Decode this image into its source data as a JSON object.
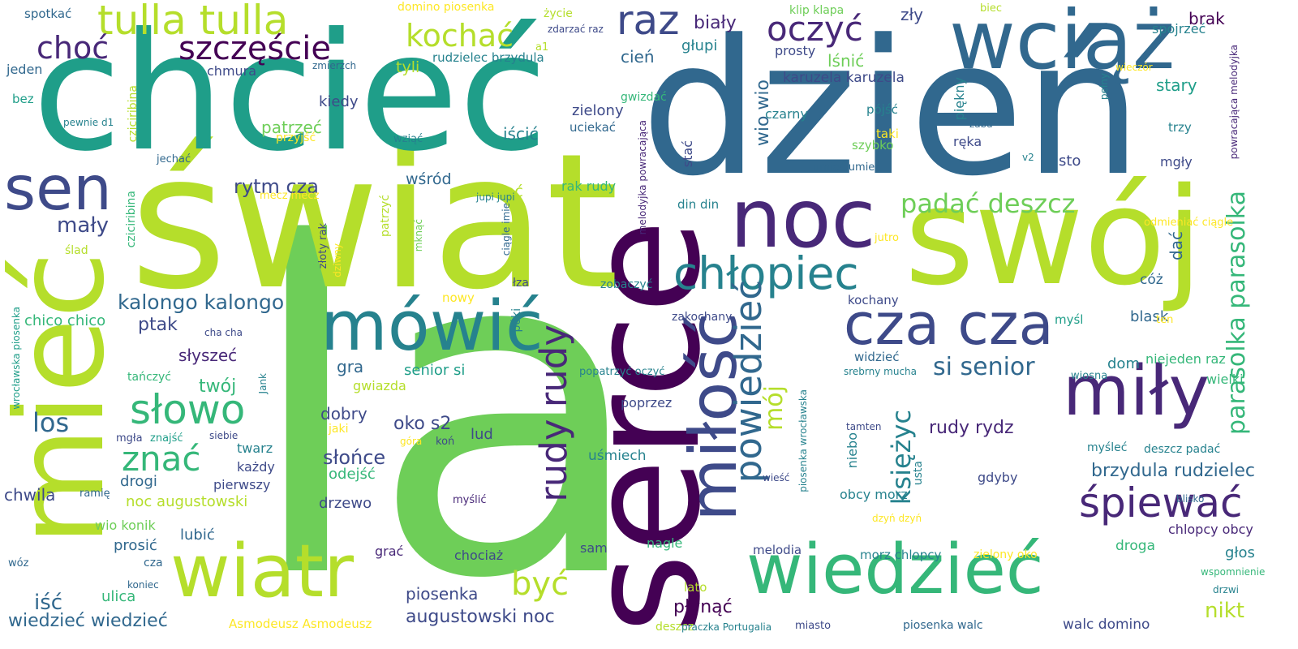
{
  "palette": {
    "dark_purple": "#440154",
    "purple": "#482878",
    "indigo": "#3e4a89",
    "blue": "#31688e",
    "teal": "#26828e",
    "green_teal": "#1f9e89",
    "green": "#35b779",
    "light_green": "#6ece58",
    "lime": "#b5de2b",
    "yellow": "#fde725"
  },
  "words": [
    {
      "text": "la",
      "color": "light_green"
    },
    {
      "text": "serce",
      "color": "dark_purple"
    },
    {
      "text": "dzień",
      "color": "blue"
    },
    {
      "text": "świat",
      "color": "lime"
    },
    {
      "text": "chcieć",
      "color": "green_teal"
    },
    {
      "text": "swój",
      "color": "lime"
    },
    {
      "text": "mieć",
      "color": "lime"
    },
    {
      "text": "noc",
      "color": "purple"
    },
    {
      "text": "wciąż",
      "color": "blue"
    },
    {
      "text": "mówić",
      "color": "teal"
    },
    {
      "text": "miły",
      "color": "purple"
    },
    {
      "text": "wiedzieć",
      "color": "green"
    },
    {
      "text": "wiatr",
      "color": "lime"
    },
    {
      "text": "miłość",
      "color": "indigo"
    },
    {
      "text": "tulla tulla",
      "color": "lime"
    },
    {
      "text": "sen",
      "color": "indigo"
    },
    {
      "text": "cza cza",
      "color": "indigo"
    },
    {
      "text": "chłopiec",
      "color": "teal"
    },
    {
      "text": "rudy rudy",
      "color": "purple"
    },
    {
      "text": "raz",
      "color": "indigo"
    },
    {
      "text": "oczyć",
      "color": "purple"
    },
    {
      "text": "powiedzieć",
      "color": "blue"
    },
    {
      "text": "słowo",
      "color": "green"
    },
    {
      "text": "śpiewać",
      "color": "purple"
    },
    {
      "text": "szczęście",
      "color": "dark_purple"
    },
    {
      "text": "kochać",
      "color": "lime"
    },
    {
      "text": "choć",
      "color": "purple"
    },
    {
      "text": "znać",
      "color": "green"
    },
    {
      "text": "parasolka parasolka",
      "color": "green"
    },
    {
      "text": "padać deszcz",
      "color": "light_green"
    },
    {
      "text": "być",
      "color": "lime"
    },
    {
      "text": "księżyc",
      "color": "teal"
    },
    {
      "text": "si senior",
      "color": "blue"
    },
    {
      "text": "mój",
      "color": "lime"
    },
    {
      "text": "los",
      "color": "blue"
    },
    {
      "text": "mały",
      "color": "indigo"
    },
    {
      "text": "kalongo kalongo",
      "color": "blue"
    },
    {
      "text": "rytm cza",
      "color": "indigo"
    },
    {
      "text": "brzydula rudzielec",
      "color": "blue"
    },
    {
      "text": "wiedzieć wiedzieć",
      "color": "blue"
    },
    {
      "text": "augustowski noc",
      "color": "indigo"
    },
    {
      "text": "iść",
      "color": "blue"
    },
    {
      "text": "piosenka",
      "color": "indigo"
    },
    {
      "text": "nikt",
      "color": "lime"
    },
    {
      "text": "walc domino",
      "color": "indigo"
    },
    {
      "text": "wio wio",
      "color": "blue"
    },
    {
      "text": "słońce",
      "color": "indigo"
    },
    {
      "text": "oko s2",
      "color": "indigo"
    },
    {
      "text": "rudy rydz",
      "color": "purple"
    },
    {
      "text": "twój",
      "color": "green"
    },
    {
      "text": "ptak",
      "color": "indigo"
    },
    {
      "text": "płynąć",
      "color": "dark_purple"
    },
    {
      "text": "biały",
      "color": "purple"
    },
    {
      "text": "zły",
      "color": "indigo"
    },
    {
      "text": "cień",
      "color": "blue"
    },
    {
      "text": "głupi",
      "color": "teal"
    },
    {
      "text": "lśnić",
      "color": "light_green"
    },
    {
      "text": "brak",
      "color": "dark_purple"
    },
    {
      "text": "stary",
      "color": "green_teal"
    },
    {
      "text": "spojrzeć",
      "color": "teal"
    },
    {
      "text": "karuzela karuzela",
      "color": "indigo"
    },
    {
      "text": "prosty",
      "color": "indigo"
    },
    {
      "text": "tyli",
      "color": "lime"
    },
    {
      "text": "chmura",
      "color": "indigo"
    },
    {
      "text": "kiedy",
      "color": "indigo"
    },
    {
      "text": "patrzeć",
      "color": "light_green"
    },
    {
      "text": "iścić",
      "color": "teal"
    },
    {
      "text": "zielony",
      "color": "indigo"
    },
    {
      "text": "uciekać",
      "color": "blue"
    },
    {
      "text": "czarny",
      "color": "teal"
    },
    {
      "text": "pójść",
      "color": "teal"
    },
    {
      "text": "taki",
      "color": "yellow"
    },
    {
      "text": "szybko",
      "color": "light_green"
    },
    {
      "text": "ręka",
      "color": "indigo"
    },
    {
      "text": "sto",
      "color": "indigo"
    },
    {
      "text": "mgły",
      "color": "indigo"
    },
    {
      "text": "trzy",
      "color": "teal"
    },
    {
      "text": "czekać",
      "color": "lime"
    },
    {
      "text": "wśród",
      "color": "blue"
    },
    {
      "text": "rak rudy",
      "color": "green"
    },
    {
      "text": "din din",
      "color": "teal"
    },
    {
      "text": "stać",
      "color": "indigo"
    },
    {
      "text": "dać",
      "color": "blue"
    },
    {
      "text": "cóż",
      "color": "blue"
    },
    {
      "text": "gra",
      "color": "blue"
    },
    {
      "text": "senior si",
      "color": "green_teal"
    },
    {
      "text": "gwiazda",
      "color": "lime"
    },
    {
      "text": "dobry",
      "color": "indigo"
    },
    {
      "text": "lud",
      "color": "indigo"
    },
    {
      "text": "słyszeć",
      "color": "purple"
    },
    {
      "text": "chico chico",
      "color": "green"
    },
    {
      "text": "drogi",
      "color": "blue"
    },
    {
      "text": "noc augustowski",
      "color": "lime"
    },
    {
      "text": "odejść",
      "color": "green"
    },
    {
      "text": "drzewo",
      "color": "indigo"
    },
    {
      "text": "chwila",
      "color": "indigo"
    },
    {
      "text": "lubić",
      "color": "blue"
    },
    {
      "text": "prosić",
      "color": "blue"
    },
    {
      "text": "ulica",
      "color": "green"
    },
    {
      "text": "wio konik",
      "color": "light_green"
    },
    {
      "text": "każdy",
      "color": "indigo"
    },
    {
      "text": "pierwszy",
      "color": "indigo"
    },
    {
      "text": "twarz",
      "color": "teal"
    },
    {
      "text": "uśmiech",
      "color": "teal"
    },
    {
      "text": "poprzez",
      "color": "indigo"
    },
    {
      "text": "kochany",
      "color": "indigo"
    },
    {
      "text": "zakochany",
      "color": "indigo"
    },
    {
      "text": "widzieć",
      "color": "blue"
    },
    {
      "text": "dom",
      "color": "teal"
    },
    {
      "text": "blask",
      "color": "blue"
    },
    {
      "text": "myśl",
      "color": "green_teal"
    },
    {
      "text": "niejeden raz",
      "color": "green"
    },
    {
      "text": "wielki",
      "color": "green"
    },
    {
      "text": "wiosna",
      "color": "teal"
    },
    {
      "text": "gdyby",
      "color": "indigo"
    },
    {
      "text": "niebo",
      "color": "teal"
    },
    {
      "text": "usta",
      "color": "teal"
    },
    {
      "text": "myśleć",
      "color": "teal"
    },
    {
      "text": "deszcz padać",
      "color": "teal"
    },
    {
      "text": "obcy morz",
      "color": "teal"
    },
    {
      "text": "chlopcy obcy",
      "color": "purple"
    },
    {
      "text": "głos",
      "color": "teal"
    },
    {
      "text": "droga",
      "color": "green"
    },
    {
      "text": "melodia",
      "color": "indigo"
    },
    {
      "text": "morz chlopcy",
      "color": "teal"
    },
    {
      "text": "nagle",
      "color": "green"
    },
    {
      "text": "sam",
      "color": "indigo"
    },
    {
      "text": "chociaż",
      "color": "indigo"
    },
    {
      "text": "grać",
      "color": "purple"
    },
    {
      "text": "lato",
      "color": "lime"
    },
    {
      "text": "zielony oko",
      "color": "yellow"
    },
    {
      "text": "wspomnienie",
      "color": "green"
    },
    {
      "text": "drzwi",
      "color": "teal"
    },
    {
      "text": "miasto",
      "color": "indigo"
    },
    {
      "text": "piosenka walc",
      "color": "blue"
    },
    {
      "text": "deszcz",
      "color": "lime"
    },
    {
      "text": "praczka Portugalia",
      "color": "teal"
    },
    {
      "text": "Asmodeusz Asmodeusz",
      "color": "yellow"
    },
    {
      "text": "spotkać",
      "color": "blue"
    },
    {
      "text": "jeden",
      "color": "blue"
    },
    {
      "text": "bez",
      "color": "green_teal"
    },
    {
      "text": "pewnie d1",
      "color": "teal"
    },
    {
      "text": "domino piosenka",
      "color": "yellow"
    },
    {
      "text": "życie",
      "color": "lime"
    },
    {
      "text": "zdarzać raz",
      "color": "indigo"
    },
    {
      "text": "a1",
      "color": "lime"
    },
    {
      "text": "rudzielec brzydula",
      "color": "teal"
    },
    {
      "text": "zmierzch",
      "color": "blue"
    },
    {
      "text": "klip klapa",
      "color": "light_green"
    },
    {
      "text": "biec",
      "color": "lime"
    },
    {
      "text": "wieczór",
      "color": "yellow"
    },
    {
      "text": "piękny",
      "color": "teal"
    },
    {
      "text": "pełny",
      "color": "teal"
    },
    {
      "text": "żaba",
      "color": "blue"
    },
    {
      "text": "gwizdać",
      "color": "green"
    },
    {
      "text": "wziąć",
      "color": "teal"
    },
    {
      "text": "przyjść",
      "color": "yellow"
    },
    {
      "text": "jechać",
      "color": "blue"
    },
    {
      "text": "cziciribina",
      "color": "lime"
    },
    {
      "text": "mecz mecz",
      "color": "yellow"
    },
    {
      "text": "jupi jupi",
      "color": "teal"
    },
    {
      "text": "umieć umieć",
      "color": "blue"
    },
    {
      "text": "v2",
      "color": "teal"
    },
    {
      "text": "jutro",
      "color": "yellow"
    },
    {
      "text": "odmieniać ciągle",
      "color": "yellow"
    },
    {
      "text": "ślad",
      "color": "lime"
    },
    {
      "text": "mknąć",
      "color": "light_green"
    },
    {
      "text": "złoty rak",
      "color": "indigo"
    },
    {
      "text": "dziwny",
      "color": "yellow"
    },
    {
      "text": "ciągle imie",
      "color": "blue"
    },
    {
      "text": "łza",
      "color": "indigo"
    },
    {
      "text": "póki",
      "color": "teal"
    },
    {
      "text": "nowy",
      "color": "yellow"
    },
    {
      "text": "zobaczyć",
      "color": "teal"
    },
    {
      "text": "cha cha",
      "color": "indigo"
    },
    {
      "text": "ten",
      "color": "yellow"
    },
    {
      "text": "tańczyć",
      "color": "green"
    },
    {
      "text": "Jank",
      "color": "teal"
    },
    {
      "text": "popatrzyć oczyć",
      "color": "teal"
    },
    {
      "text": "srebrny mucha",
      "color": "teal"
    },
    {
      "text": "jaki",
      "color": "yellow"
    },
    {
      "text": "mgła",
      "color": "indigo"
    },
    {
      "text": "znajść",
      "color": "green_teal"
    },
    {
      "text": "siebie",
      "color": "indigo"
    },
    {
      "text": "góra",
      "color": "yellow"
    },
    {
      "text": "koń",
      "color": "indigo"
    },
    {
      "text": "tamten",
      "color": "indigo"
    },
    {
      "text": "ramię",
      "color": "blue"
    },
    {
      "text": "myślić",
      "color": "purple"
    },
    {
      "text": "wieść",
      "color": "indigo"
    },
    {
      "text": "blisko",
      "color": "blue"
    },
    {
      "text": "wóz",
      "color": "blue"
    },
    {
      "text": "cza",
      "color": "blue"
    },
    {
      "text": "koniec",
      "color": "blue"
    },
    {
      "text": "dzyń dzyń",
      "color": "yellow"
    },
    {
      "text": "wrocławska piosenka",
      "color": "green_teal"
    },
    {
      "text": "patrzyć",
      "color": "lime"
    },
    {
      "text": "melodyjka powracająca",
      "color": "purple"
    },
    {
      "text": "piosenka wrocławska",
      "color": "teal"
    },
    {
      "text": "powracająca melodyjka",
      "color": "purple"
    },
    {
      "text": "cziciribina",
      "color": "green"
    }
  ]
}
